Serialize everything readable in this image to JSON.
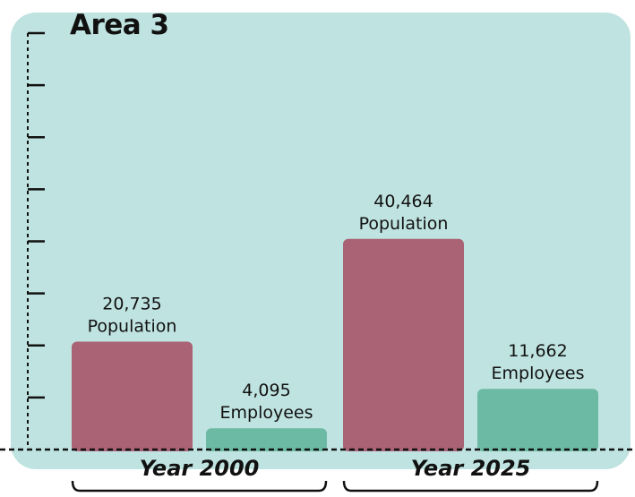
{
  "chart_data": {
    "type": "bar",
    "title": "Area 3",
    "categories": [
      "Year 2000",
      "Year 2025"
    ],
    "series": [
      {
        "name": "Population",
        "values": [
          20735,
          40464
        ],
        "labels": [
          "20,735",
          "40,464"
        ]
      },
      {
        "name": "Employees",
        "values": [
          4095,
          11662
        ],
        "labels": [
          "4,095",
          "11,662"
        ]
      }
    ],
    "ylim": [
      0,
      80000
    ],
    "grid": false,
    "legend": "none"
  },
  "colors": {
    "background_panel": "#bfe3e0",
    "population_bar": "#a96375",
    "employees_bar": "#6dbaa4",
    "axis": "#111111"
  }
}
